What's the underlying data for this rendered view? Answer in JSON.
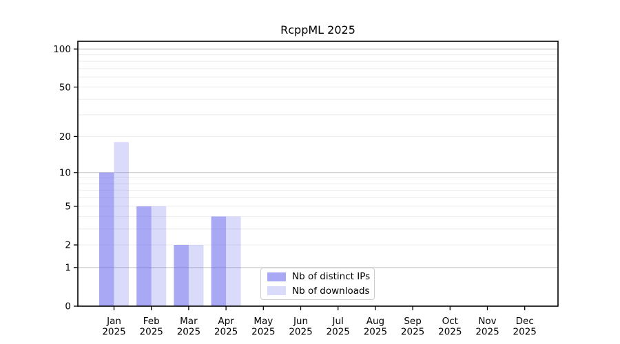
{
  "chart_data": {
    "type": "bar",
    "title": "RcppML 2025",
    "year_label": "2025",
    "categories": [
      "Jan",
      "Feb",
      "Mar",
      "Apr",
      "May",
      "Jun",
      "Jul",
      "Aug",
      "Sep",
      "Oct",
      "Nov",
      "Dec"
    ],
    "series": [
      {
        "name": "Nb of distinct IPs",
        "values": [
          10,
          5,
          2,
          4,
          0,
          0,
          0,
          0,
          0,
          0,
          0,
          0
        ],
        "color": "rgba(102,102,238,0.57)"
      },
      {
        "name": "Nb of downloads",
        "values": [
          18,
          5,
          2,
          4,
          0,
          0,
          0,
          0,
          0,
          0,
          0,
          0
        ],
        "color": "rgba(102,102,238,0.24)"
      }
    ],
    "yscale": "log1p",
    "ylim": [
      0,
      115
    ],
    "yticks": [
      0,
      1,
      2,
      5,
      10,
      20,
      50,
      100
    ],
    "major_gridlines": [
      1,
      10,
      100
    ],
    "minor_gridlines": [
      2,
      3,
      4,
      5,
      6,
      7,
      8,
      9,
      20,
      30,
      40,
      50,
      60,
      70,
      80,
      90
    ],
    "grid": true,
    "legend_position": "lower center",
    "colors": {
      "major_grid": "#c0c0c0",
      "minor_grid": "#ececec",
      "axis": "#000000",
      "text": "#000000",
      "background": "#ffffff",
      "legend_border": "#cccccc"
    }
  }
}
